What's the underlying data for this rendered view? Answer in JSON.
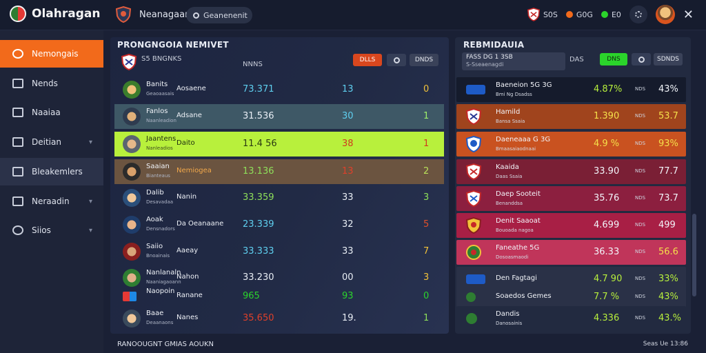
{
  "app": {
    "name": "Olahragan",
    "title": "Neanagaan"
  },
  "search": {
    "label": "Geanenenit"
  },
  "top_right": {
    "stat1": "S0S",
    "stat2": "G0G",
    "stat3": "E0"
  },
  "sidebar": {
    "items": [
      {
        "label": "Nemongais",
        "icon": "target-icon"
      },
      {
        "label": "Nends",
        "icon": "list-icon"
      },
      {
        "label": "Naaiaa",
        "icon": "box-icon"
      },
      {
        "label": "Deitian",
        "icon": "flag-icon"
      },
      {
        "label": "Bleakemlers",
        "icon": "check-icon"
      },
      {
        "label": "Neraadin",
        "icon": "chart-icon"
      },
      {
        "label": "Siios",
        "icon": "clock-icon"
      }
    ]
  },
  "left_panel": {
    "title": "PRONGNGOIA NEMIVET",
    "team_label": "S5 BNGNKS",
    "col_label": "NNNS",
    "btn_red": "DLLS",
    "btn_gray": "DNDS",
    "rows": [
      {
        "name": "Banits",
        "sub": "Geaoaasais",
        "team": "Aosaene",
        "v1": "73.371",
        "v2": "13",
        "v3": "0"
      },
      {
        "name": "Fanlos",
        "sub": "Naanleadion",
        "team": "Adsane",
        "v1": "31.536",
        "v2": "30",
        "v3": "1"
      },
      {
        "name": "Jaantens",
        "sub": "Nanleadios",
        "team": "Daito",
        "v1": "11.4 56",
        "v2": "38",
        "v3": "1"
      },
      {
        "name": "Saaian",
        "sub": "Bianteaus",
        "team": "Nemiogea",
        "v1": "13.136",
        "v2": "13",
        "v3": "2"
      },
      {
        "name": "Dalib",
        "sub": "Desavadaa",
        "team": "Nanin",
        "v1": "33.359",
        "v2": "33",
        "v3": "3"
      },
      {
        "name": "Aoak",
        "sub": "Densnadors",
        "team": "Da Oeanaane",
        "v1": "23.339",
        "v2": "32",
        "v3": "5"
      },
      {
        "name": "Saiio",
        "sub": "Bnoainais",
        "team": "Aaeay",
        "v1": "33.333",
        "v2": "33",
        "v3": "7"
      },
      {
        "name": "Nanlanaln",
        "sub": "Naaniagaoann",
        "team": "Nahon",
        "v1": "33.230",
        "v2": "00",
        "v3": "3"
      },
      {
        "name": "Naopoin",
        "sub": "",
        "team": "Ranane",
        "v1": "965",
        "v2": "93",
        "v3": "0"
      },
      {
        "name": "Baae",
        "sub": "Deaanaons",
        "team": "Nanes",
        "v1": "35.650",
        "v2": "19.",
        "v3": "1"
      }
    ]
  },
  "right_panel": {
    "title": "REBMIDAUIA",
    "filter_line1": "FASS DG 1 3SB",
    "filter_line2": "S-Sseaenagdi",
    "col_label": "DAS",
    "btn_green": "DNS",
    "btn_gray": "SDNDS",
    "rows": [
      {
        "name": "Baeneion 5G 3G",
        "sub": "Bmi Ng Dsadss",
        "p1": "4.87%",
        "mid": "NDS",
        "p2": "43%"
      },
      {
        "name": "Hamild",
        "sub": "Bansa Ssaia",
        "p1": "1.390",
        "mid": "NDS",
        "p2": "53.7"
      },
      {
        "name": "Daeneaaa G 3G",
        "sub": "Bmaasaiaodnaai",
        "p1": "4.9 %",
        "mid": "NDS",
        "p2": "93%"
      },
      {
        "name": "Kaaida",
        "sub": "Daas Ssaia",
        "p1": "33.90",
        "mid": "NDS",
        "p2": "77.7"
      },
      {
        "name": "Daep Sooteit",
        "sub": "Benanddsa",
        "p1": "35.76",
        "mid": "NDS",
        "p2": "73.7"
      },
      {
        "name": "Denit Saaoat",
        "sub": "Bouoada nagoa",
        "p1": "4.699",
        "mid": "NDS",
        "p2": "499"
      },
      {
        "name": "Faneathe 5G",
        "sub": "Dosoasmaodi",
        "p1": "36.33",
        "mid": "NDS",
        "p2": "56.6"
      },
      {
        "name": "Den Fagtagi",
        "sub": "",
        "p1": "4.7 90",
        "mid": "NDS",
        "p2": "33%"
      },
      {
        "name": "Soaedos Gemes",
        "sub": "",
        "p1": "7.7 %",
        "mid": "NDS",
        "p2": "43%"
      },
      {
        "name": "Dandis",
        "sub": "Danosainis",
        "p1": "4.336",
        "mid": "NDS",
        "p2": "43.%"
      }
    ]
  },
  "footer": {
    "left": "RANOOUGNT GMIAS AOUKN",
    "right": "Seas Ue 13:86"
  },
  "colors": {
    "accent": "#f26a1b",
    "green": "#2bd42b",
    "highlight": "#b8f03c"
  }
}
